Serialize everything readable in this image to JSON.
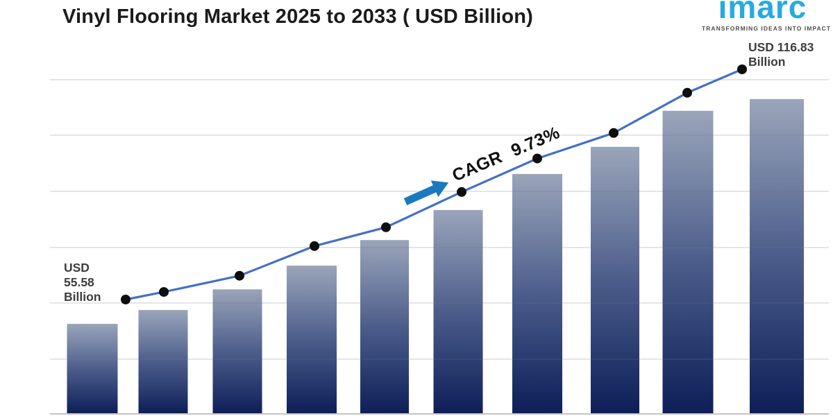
{
  "title": "Vinyl Flooring Market 2025 to 2033 ( USD Billion)",
  "logo": {
    "brand": "imarc",
    "tagline": "TRANSFORMING IDEAS INTO IMPACT",
    "brand_color": "#29a9e1"
  },
  "annotations": {
    "start_label": {
      "lines": [
        "USD",
        "55.58",
        "Billion"
      ],
      "text": "USD 55.58 Billion"
    },
    "end_label": {
      "lines": [
        "USD 116.83",
        "Billion"
      ],
      "text": "USD 116.83 Billion"
    },
    "cagr_label": "CAGR 9.73%"
  },
  "colors": {
    "bar_gradient_top": "#9aa5ba",
    "bar_gradient_mid": "#4c5d8b",
    "bar_gradient_bottom": "#0d1e58",
    "trend_line": "#4470c4",
    "marker": "#0e0e0e",
    "arrow": "#1a7abf",
    "gridline": "rgba(109,117,134,0.38)",
    "axis_line": "#c4c4c4",
    "title_text": "#1b1b1b",
    "label_text": "#3d3d3d"
  },
  "chart_data": {
    "type": "bar",
    "has_line_overlay": true,
    "title": "Vinyl Flooring Market 2025 to 2033 ( USD Billion)",
    "unit": "USD Billion",
    "period": "2025 to 2033",
    "cagr_percent": 9.73,
    "n_bars": 10,
    "x_tick_labels": [],
    "value_axis_labels_visible": false,
    "grid": "horizontal",
    "legend": "none",
    "labeled_values": {
      "first_line_point": 55.58,
      "last_line_point": 116.83
    },
    "bar_values_estimated": [
      49.1,
      52.8,
      58.3,
      64.6,
      71.4,
      79.4,
      89.0,
      96.2,
      105.8,
      108.9
    ],
    "line_values_estimated": [
      55.58,
      57.6,
      61.9,
      69.8,
      74.8,
      84.2,
      93.1,
      99.9,
      110.6,
      116.83
    ]
  }
}
